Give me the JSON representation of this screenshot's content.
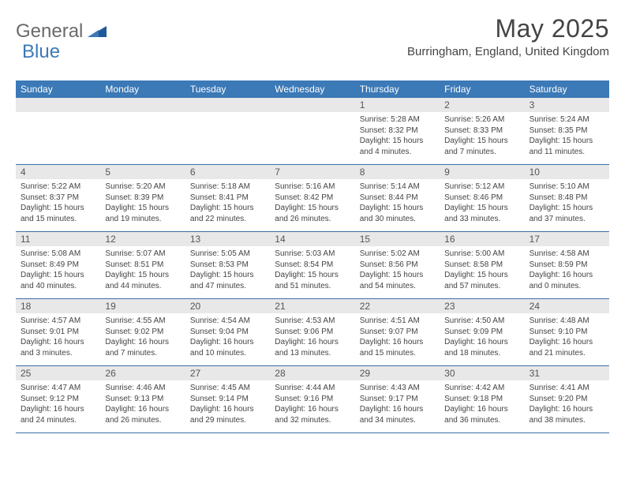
{
  "logo": {
    "general": "General",
    "blue": "Blue"
  },
  "title": "May 2025",
  "location": "Burringham, England, United Kingdom",
  "day_headers": [
    "Sunday",
    "Monday",
    "Tuesday",
    "Wednesday",
    "Thursday",
    "Friday",
    "Saturday"
  ],
  "colors": {
    "header_bg": "#3b79b7",
    "header_text": "#ffffff",
    "daynum_bg": "#e8e8e8",
    "row_border": "#3b6fa4",
    "body_text": "#444444",
    "logo_gray": "#6a6a6a",
    "logo_blue": "#3b79b7"
  },
  "fonts": {
    "title_size": 32,
    "location_size": 15,
    "header_size": 12,
    "daynum_size": 12,
    "body_size": 10
  },
  "weeks": [
    [
      null,
      null,
      null,
      null,
      {
        "n": "1",
        "sr": "Sunrise: 5:28 AM",
        "ss": "Sunset: 8:32 PM",
        "dl": "Daylight: 15 hours and 4 minutes."
      },
      {
        "n": "2",
        "sr": "Sunrise: 5:26 AM",
        "ss": "Sunset: 8:33 PM",
        "dl": "Daylight: 15 hours and 7 minutes."
      },
      {
        "n": "3",
        "sr": "Sunrise: 5:24 AM",
        "ss": "Sunset: 8:35 PM",
        "dl": "Daylight: 15 hours and 11 minutes."
      }
    ],
    [
      {
        "n": "4",
        "sr": "Sunrise: 5:22 AM",
        "ss": "Sunset: 8:37 PM",
        "dl": "Daylight: 15 hours and 15 minutes."
      },
      {
        "n": "5",
        "sr": "Sunrise: 5:20 AM",
        "ss": "Sunset: 8:39 PM",
        "dl": "Daylight: 15 hours and 19 minutes."
      },
      {
        "n": "6",
        "sr": "Sunrise: 5:18 AM",
        "ss": "Sunset: 8:41 PM",
        "dl": "Daylight: 15 hours and 22 minutes."
      },
      {
        "n": "7",
        "sr": "Sunrise: 5:16 AM",
        "ss": "Sunset: 8:42 PM",
        "dl": "Daylight: 15 hours and 26 minutes."
      },
      {
        "n": "8",
        "sr": "Sunrise: 5:14 AM",
        "ss": "Sunset: 8:44 PM",
        "dl": "Daylight: 15 hours and 30 minutes."
      },
      {
        "n": "9",
        "sr": "Sunrise: 5:12 AM",
        "ss": "Sunset: 8:46 PM",
        "dl": "Daylight: 15 hours and 33 minutes."
      },
      {
        "n": "10",
        "sr": "Sunrise: 5:10 AM",
        "ss": "Sunset: 8:48 PM",
        "dl": "Daylight: 15 hours and 37 minutes."
      }
    ],
    [
      {
        "n": "11",
        "sr": "Sunrise: 5:08 AM",
        "ss": "Sunset: 8:49 PM",
        "dl": "Daylight: 15 hours and 40 minutes."
      },
      {
        "n": "12",
        "sr": "Sunrise: 5:07 AM",
        "ss": "Sunset: 8:51 PM",
        "dl": "Daylight: 15 hours and 44 minutes."
      },
      {
        "n": "13",
        "sr": "Sunrise: 5:05 AM",
        "ss": "Sunset: 8:53 PM",
        "dl": "Daylight: 15 hours and 47 minutes."
      },
      {
        "n": "14",
        "sr": "Sunrise: 5:03 AM",
        "ss": "Sunset: 8:54 PM",
        "dl": "Daylight: 15 hours and 51 minutes."
      },
      {
        "n": "15",
        "sr": "Sunrise: 5:02 AM",
        "ss": "Sunset: 8:56 PM",
        "dl": "Daylight: 15 hours and 54 minutes."
      },
      {
        "n": "16",
        "sr": "Sunrise: 5:00 AM",
        "ss": "Sunset: 8:58 PM",
        "dl": "Daylight: 15 hours and 57 minutes."
      },
      {
        "n": "17",
        "sr": "Sunrise: 4:58 AM",
        "ss": "Sunset: 8:59 PM",
        "dl": "Daylight: 16 hours and 0 minutes."
      }
    ],
    [
      {
        "n": "18",
        "sr": "Sunrise: 4:57 AM",
        "ss": "Sunset: 9:01 PM",
        "dl": "Daylight: 16 hours and 3 minutes."
      },
      {
        "n": "19",
        "sr": "Sunrise: 4:55 AM",
        "ss": "Sunset: 9:02 PM",
        "dl": "Daylight: 16 hours and 7 minutes."
      },
      {
        "n": "20",
        "sr": "Sunrise: 4:54 AM",
        "ss": "Sunset: 9:04 PM",
        "dl": "Daylight: 16 hours and 10 minutes."
      },
      {
        "n": "21",
        "sr": "Sunrise: 4:53 AM",
        "ss": "Sunset: 9:06 PM",
        "dl": "Daylight: 16 hours and 13 minutes."
      },
      {
        "n": "22",
        "sr": "Sunrise: 4:51 AM",
        "ss": "Sunset: 9:07 PM",
        "dl": "Daylight: 16 hours and 15 minutes."
      },
      {
        "n": "23",
        "sr": "Sunrise: 4:50 AM",
        "ss": "Sunset: 9:09 PM",
        "dl": "Daylight: 16 hours and 18 minutes."
      },
      {
        "n": "24",
        "sr": "Sunrise: 4:48 AM",
        "ss": "Sunset: 9:10 PM",
        "dl": "Daylight: 16 hours and 21 minutes."
      }
    ],
    [
      {
        "n": "25",
        "sr": "Sunrise: 4:47 AM",
        "ss": "Sunset: 9:12 PM",
        "dl": "Daylight: 16 hours and 24 minutes."
      },
      {
        "n": "26",
        "sr": "Sunrise: 4:46 AM",
        "ss": "Sunset: 9:13 PM",
        "dl": "Daylight: 16 hours and 26 minutes."
      },
      {
        "n": "27",
        "sr": "Sunrise: 4:45 AM",
        "ss": "Sunset: 9:14 PM",
        "dl": "Daylight: 16 hours and 29 minutes."
      },
      {
        "n": "28",
        "sr": "Sunrise: 4:44 AM",
        "ss": "Sunset: 9:16 PM",
        "dl": "Daylight: 16 hours and 32 minutes."
      },
      {
        "n": "29",
        "sr": "Sunrise: 4:43 AM",
        "ss": "Sunset: 9:17 PM",
        "dl": "Daylight: 16 hours and 34 minutes."
      },
      {
        "n": "30",
        "sr": "Sunrise: 4:42 AM",
        "ss": "Sunset: 9:18 PM",
        "dl": "Daylight: 16 hours and 36 minutes."
      },
      {
        "n": "31",
        "sr": "Sunrise: 4:41 AM",
        "ss": "Sunset: 9:20 PM",
        "dl": "Daylight: 16 hours and 38 minutes."
      }
    ]
  ]
}
